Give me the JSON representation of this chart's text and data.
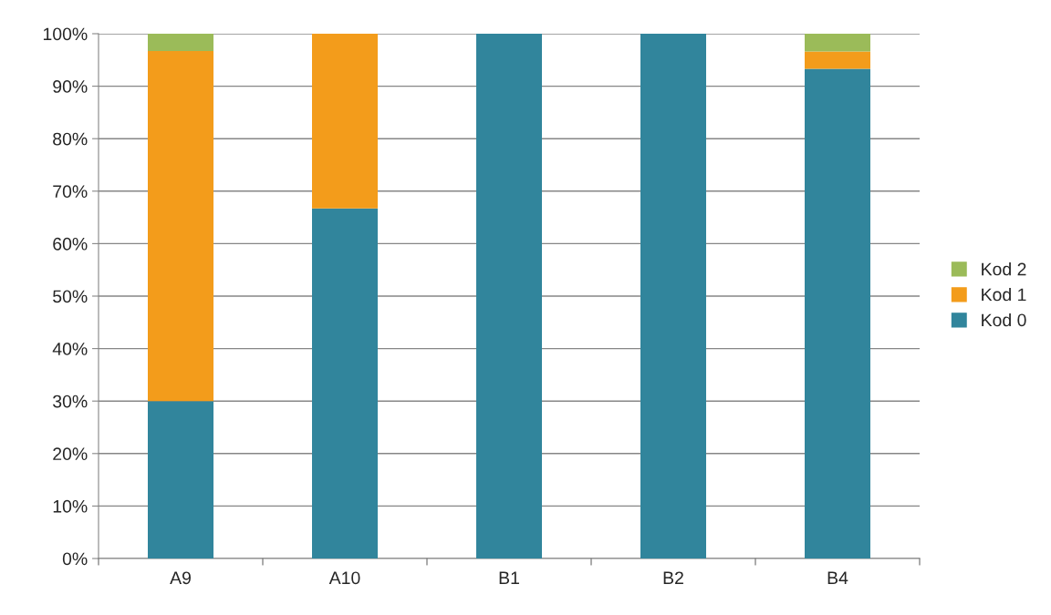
{
  "chart_data": {
    "type": "bar",
    "stacked": true,
    "categories": [
      "A9",
      "A10",
      "B1",
      "B2",
      "B4"
    ],
    "series": [
      {
        "name": "Kod 0",
        "color": "#31859c",
        "values": [
          30,
          66.7,
          100,
          100,
          93.3
        ]
      },
      {
        "name": "Kod 1",
        "color": "#f39c1b",
        "values": [
          66.7,
          33.3,
          null,
          null,
          3.3
        ]
      },
      {
        "name": "Kod 2",
        "color": "#9bbb59",
        "values": [
          3.3,
          null,
          null,
          null,
          3.4
        ]
      }
    ],
    "ylim": [
      0,
      100
    ],
    "yticks": [
      {
        "value": 0,
        "label": "0%"
      },
      {
        "value": 10,
        "label": "10%"
      },
      {
        "value": 20,
        "label": "20%"
      },
      {
        "value": 30,
        "label": "30%"
      },
      {
        "value": 40,
        "label": "40%"
      },
      {
        "value": 50,
        "label": "50%"
      },
      {
        "value": 60,
        "label": "60%"
      },
      {
        "value": 70,
        "label": "70%"
      },
      {
        "value": 80,
        "label": "80%"
      },
      {
        "value": 90,
        "label": "90%"
      },
      {
        "value": 100,
        "label": "100%"
      }
    ],
    "grid": "y",
    "legend": "right"
  }
}
